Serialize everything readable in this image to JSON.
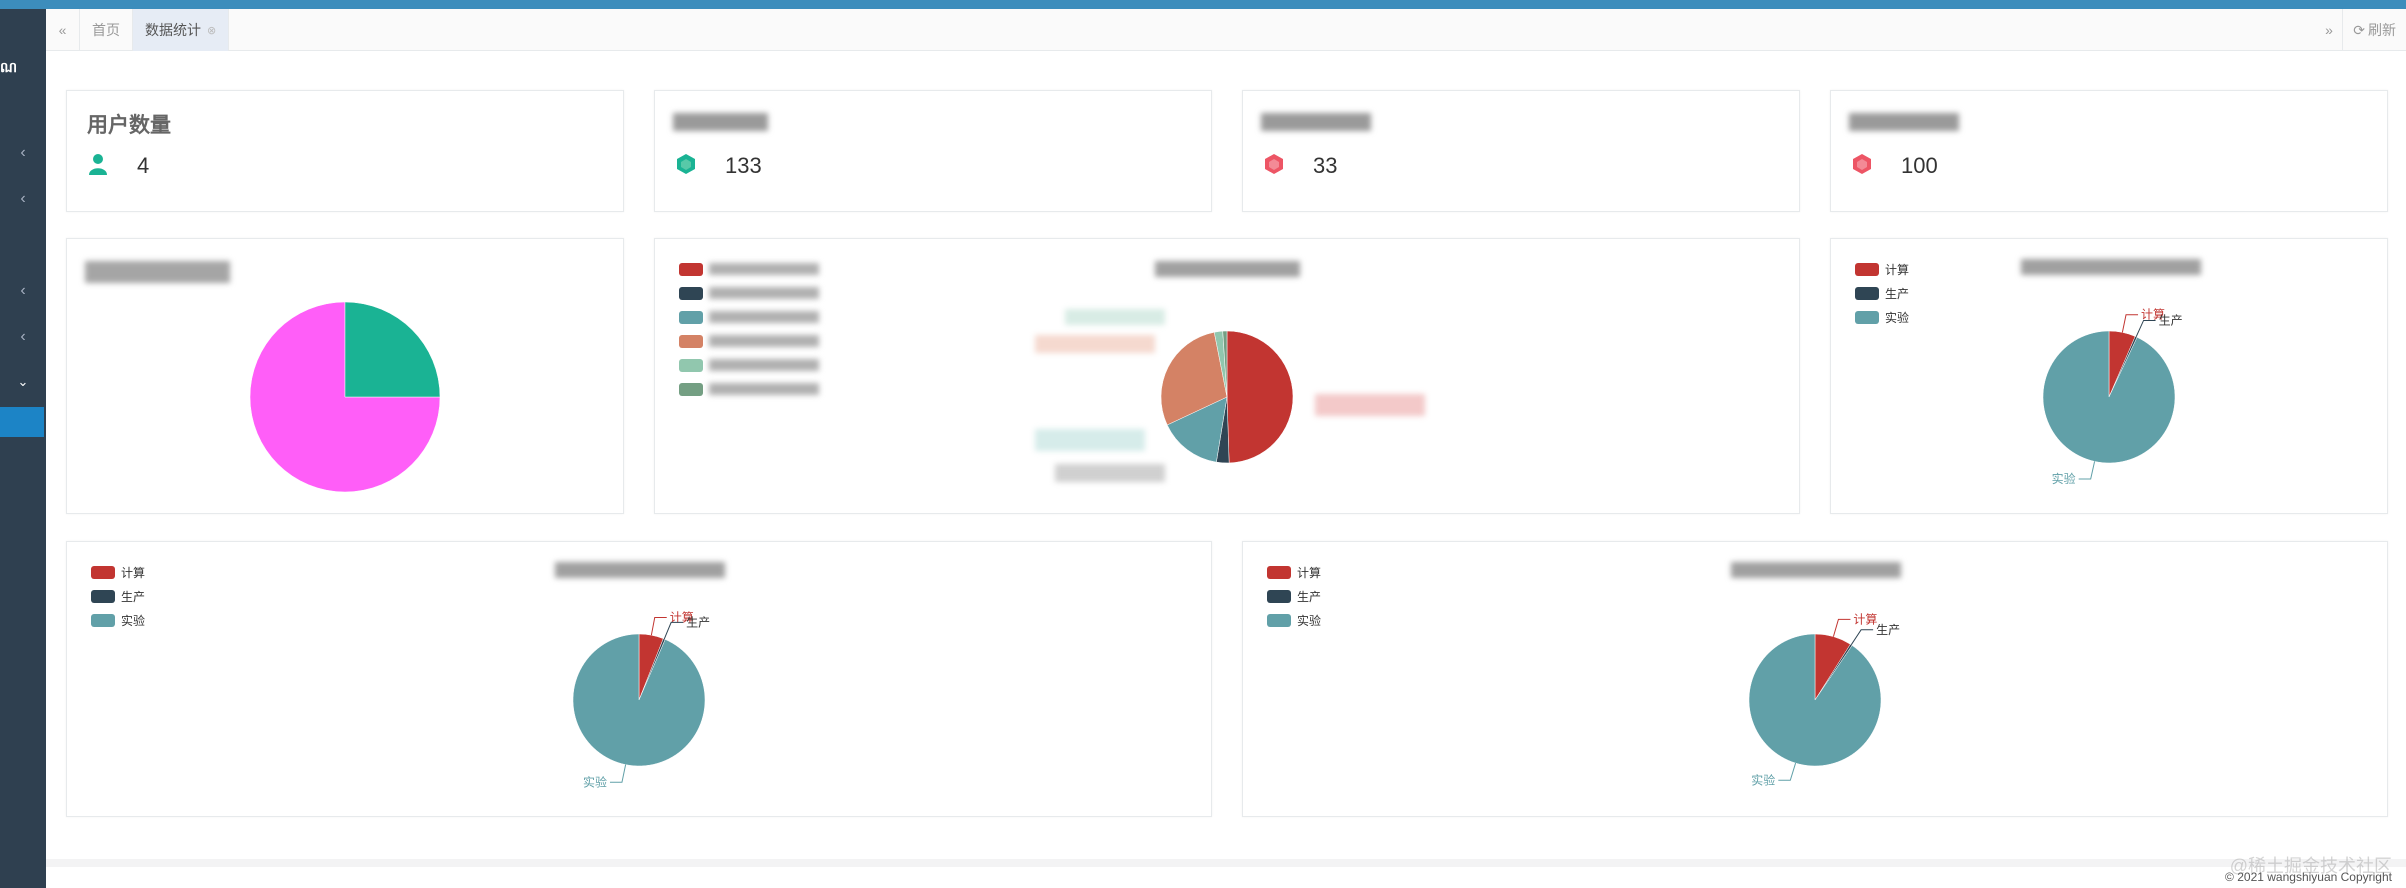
{
  "tabs": {
    "home": "首页",
    "current": "数据统计",
    "refresh": "刷新"
  },
  "stats": [
    {
      "title": "用户数量",
      "value": "4",
      "icon": "user-icon",
      "color": "#1ab394"
    },
    {
      "title": "",
      "value": "133",
      "icon": "gem-icon",
      "color": "#1ab394"
    },
    {
      "title": "",
      "value": "33",
      "icon": "gem-icon",
      "color": "#ed5565"
    },
    {
      "title": "",
      "value": "100",
      "icon": "gem-icon",
      "color": "#ed5565"
    }
  ],
  "legend_labels": [
    "计算",
    "生产",
    "实验"
  ],
  "pie_labels": {
    "compute": "计算",
    "production": "生产",
    "experiment": "实验"
  },
  "colors": {
    "compute": "#c23531",
    "production": "#2f4554",
    "experiment": "#61a0a8",
    "orange": "#d48265",
    "green": "#91c7ae",
    "teal": "#749f83",
    "magenta": "#ff5ef8",
    "pie_green": "#1ab394",
    "accent": "#1c84c6"
  },
  "footer": {
    "copyright": "© 2021 wangshiyuan Copyright",
    "watermark": "@稀土掘金技术社区"
  },
  "chart_data": [
    {
      "type": "pie",
      "title": "",
      "series": [
        {
          "values": [
            75,
            25
          ]
        }
      ]
    },
    {
      "type": "pie",
      "title": "",
      "series": [
        {
          "values": [
            48,
            3,
            15,
            28,
            2,
            1
          ]
        }
      ]
    },
    {
      "type": "pie",
      "categories": [
        "计算",
        "生产",
        "实验"
      ],
      "values": [
        6.5,
        0.5,
        93
      ],
      "legend": "top-left"
    },
    {
      "type": "pie",
      "categories": [
        "计算",
        "生产",
        "实验"
      ],
      "values": [
        6,
        0.5,
        93.5
      ],
      "legend": "top-left"
    },
    {
      "type": "pie",
      "categories": [
        "计算",
        "生产",
        "实验"
      ],
      "values": [
        9,
        0.5,
        90.5
      ],
      "legend": "top-left"
    }
  ]
}
